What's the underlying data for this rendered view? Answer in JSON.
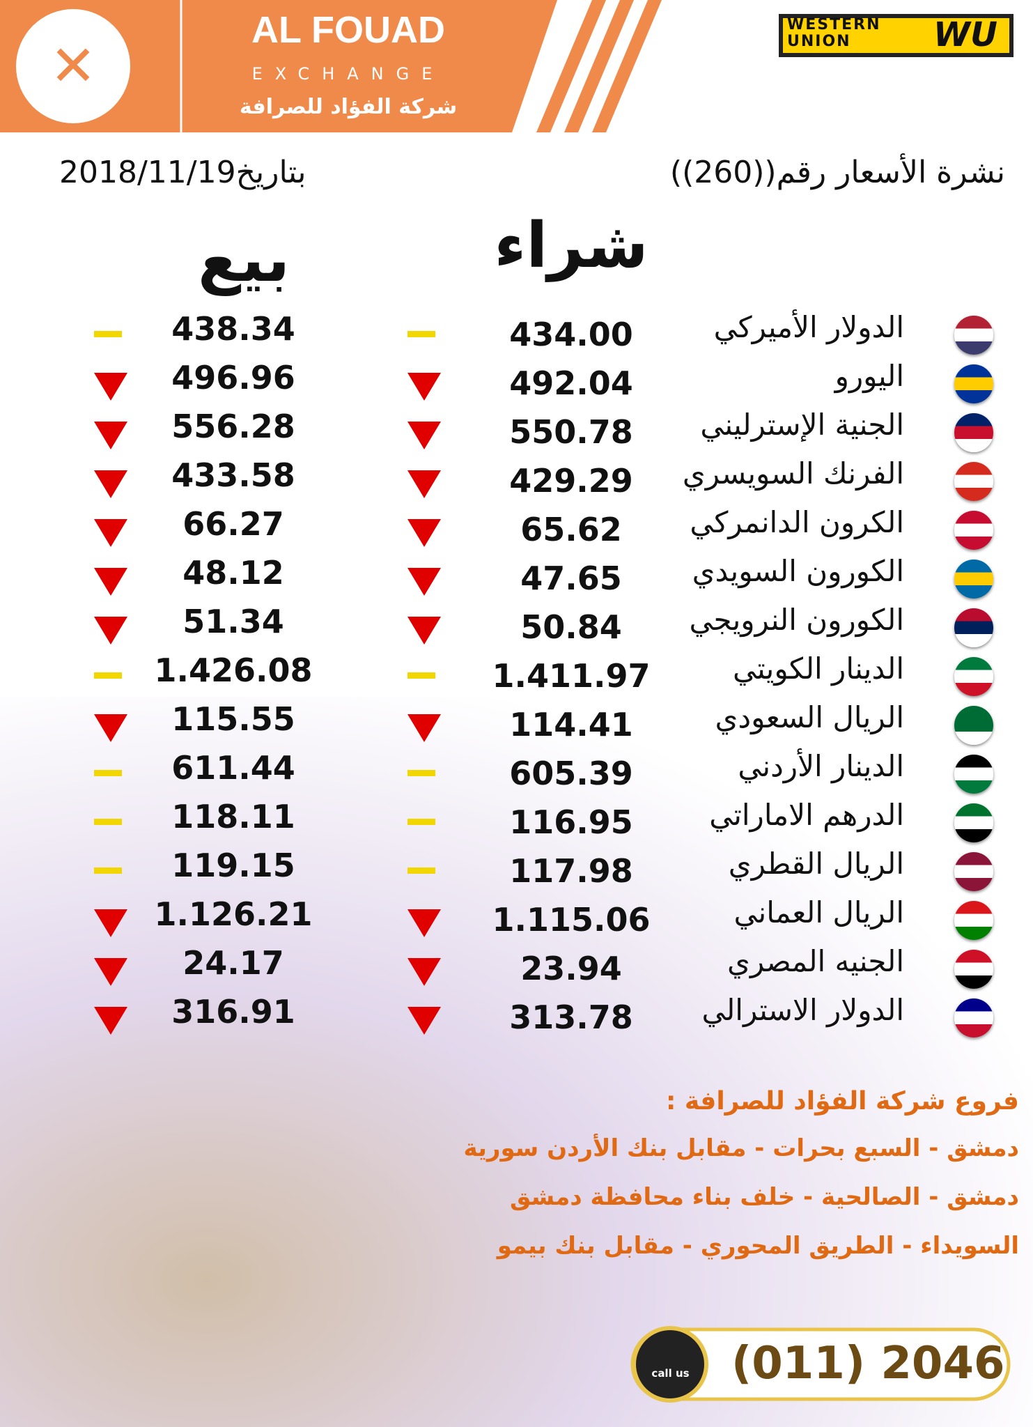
{
  "header": {
    "brand": "AL FOUAD",
    "brand_sub": "EXCHANGE",
    "brand_ar": "شركة الفؤاد للصرافة",
    "wu_text_1": "WESTERN",
    "wu_text_2": "UNION",
    "wu_mark": "WU"
  },
  "bulletin": {
    "title": "نشرة الأسعار رقم((260))",
    "date": "بتاريخ2018/11/19"
  },
  "table": {
    "buy_header": "شراء",
    "sell_header": "بيع",
    "rows": [
      {
        "name": "الدولار الأميركي",
        "buy": "434.00",
        "sell": "438.34",
        "buy_trend": "same",
        "sell_trend": "same"
      },
      {
        "name": "اليورو",
        "buy": "492.04",
        "sell": "496.96",
        "buy_trend": "down",
        "sell_trend": "down"
      },
      {
        "name": "الجنية الإسترليني",
        "buy": "550.78",
        "sell": "556.28",
        "buy_trend": "down",
        "sell_trend": "down"
      },
      {
        "name": "الفرنك السويسري",
        "buy": "429.29",
        "sell": "433.58",
        "buy_trend": "down",
        "sell_trend": "down"
      },
      {
        "name": "الكرون الدانمركي",
        "buy": "65.62",
        "sell": "66.27",
        "buy_trend": "down",
        "sell_trend": "down"
      },
      {
        "name": "الكورون السويدي",
        "buy": "47.65",
        "sell": "48.12",
        "buy_trend": "down",
        "sell_trend": "down"
      },
      {
        "name": "الكورون النرويجي",
        "buy": "50.84",
        "sell": "51.34",
        "buy_trend": "down",
        "sell_trend": "down"
      },
      {
        "name": "الدينار الكويتي",
        "buy": "1.411.97",
        "sell": "1.426.08",
        "buy_trend": "same",
        "sell_trend": "same"
      },
      {
        "name": "الريال السعودي",
        "buy": "114.41",
        "sell": "115.55",
        "buy_trend": "down",
        "sell_trend": "down"
      },
      {
        "name": "الدينار الأردني",
        "buy": "605.39",
        "sell": "611.44",
        "buy_trend": "same",
        "sell_trend": "same"
      },
      {
        "name": "الدرهم الاماراتي",
        "buy": "116.95",
        "sell": "118.11",
        "buy_trend": "same",
        "sell_trend": "same"
      },
      {
        "name": "الريال القطري",
        "buy": "117.98",
        "sell": "119.15",
        "buy_trend": "same",
        "sell_trend": "same"
      },
      {
        "name": "الريال العماني",
        "buy": "1.115.06",
        "sell": "1.126.21",
        "buy_trend": "down",
        "sell_trend": "down"
      },
      {
        "name": "الجنيه المصري",
        "buy": "23.94",
        "sell": "24.17",
        "buy_trend": "down",
        "sell_trend": "down"
      },
      {
        "name": "الدولار الاسترالي",
        "buy": "313.78",
        "sell": "316.91",
        "buy_trend": "down",
        "sell_trend": "down"
      }
    ]
  },
  "branches": {
    "title": "فروع شركة الفؤاد للصرافة :",
    "items": [
      "دمشق - السبع بحرات - مقابل بنك الأردن سورية",
      "دمشق - الصالحية - خلف بناء محافظة دمشق",
      "السويداء - الطريق المحوري - مقابل بنك بيمو"
    ]
  },
  "contact": {
    "call_label": "call us",
    "phone": "(011) 2046"
  }
}
